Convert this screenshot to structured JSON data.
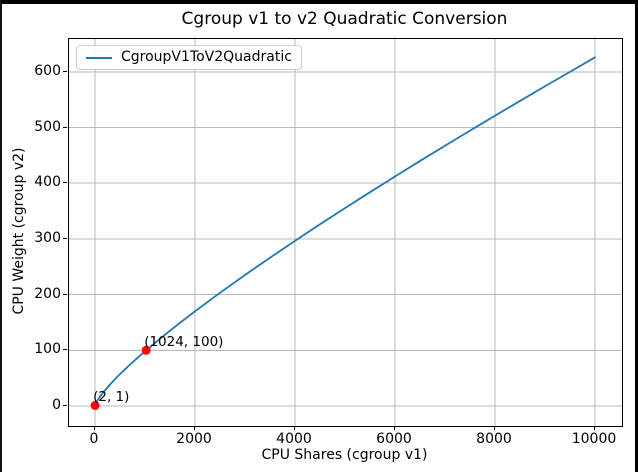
{
  "chart_data": {
    "type": "line",
    "title": "Cgroup v1 to v2 Quadratic Conversion",
    "xlabel": "CPU Shares (cgroup v1)",
    "ylabel": "CPU Weight (cgroup v2)",
    "grid": true,
    "legend_position": "upper left",
    "x_ticks": [
      0,
      2000,
      4000,
      6000,
      8000,
      10000
    ],
    "y_ticks": [
      0,
      100,
      200,
      300,
      400,
      500,
      600
    ],
    "xlim": [
      -520,
      10540
    ],
    "ylim": [
      -36,
      659
    ],
    "series": [
      {
        "name": "CgroupV1ToV2Quadratic",
        "color": "#1f77b4",
        "x": [
          2,
          10,
          25,
          50,
          100,
          150,
          200,
          300,
          400,
          500,
          600,
          700,
          800,
          1024,
          1250,
          1500,
          1750,
          2000,
          2500,
          3000,
          3500,
          4000,
          4500,
          5000,
          5500,
          6000,
          6500,
          7000,
          7500,
          8000,
          8500,
          9000,
          9500,
          10000
        ],
        "y": [
          1,
          3.1,
          6.0,
          10.0,
          16.7,
          22.7,
          28.2,
          38.5,
          48.1,
          57.1,
          65.8,
          74.2,
          82.4,
          100,
          117.0,
          135.2,
          152.8,
          170.0,
          203.2,
          235.2,
          266.2,
          296.5,
          326.2,
          355.3,
          383.9,
          412.1,
          440.0,
          467.3,
          494.5,
          521.2,
          547.8,
          574.1,
          600.0,
          626.1
        ]
      }
    ],
    "annotated_points": [
      {
        "x": 2,
        "y": 1,
        "label": "(2, 1)"
      },
      {
        "x": 1024,
        "y": 100,
        "label": "(1024, 100)"
      }
    ],
    "annotated_point_color": "#ff0000",
    "grid_color": "#b8b8b8"
  }
}
